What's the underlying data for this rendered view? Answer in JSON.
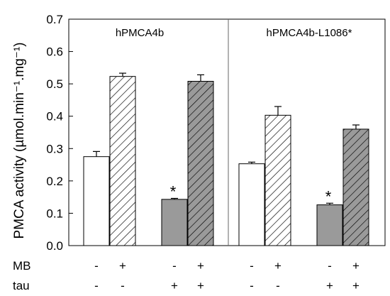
{
  "chart_data": {
    "type": "bar",
    "ylabel": "PMCA activity (µmol.min⁻¹.mg⁻¹)",
    "ylim": [
      0,
      0.7
    ],
    "yticks": [
      "0.0",
      "0.1",
      "0.2",
      "0.3",
      "0.4",
      "0.5",
      "0.6",
      "0.7"
    ],
    "panels": [
      {
        "title": "hPMCA4b",
        "bars": [
          {
            "value": 0.275,
            "error": 0.016,
            "fill": "white",
            "hatch": false,
            "MB": "-",
            "tau": "-",
            "star": false
          },
          {
            "value": 0.523,
            "error": 0.01,
            "fill": "white",
            "hatch": true,
            "MB": "+",
            "tau": "-",
            "star": false
          },
          {
            "value": 0.143,
            "error": 0.003,
            "fill": "gray",
            "hatch": false,
            "MB": "-",
            "tau": "+",
            "star": true
          },
          {
            "value": 0.508,
            "error": 0.02,
            "fill": "gray",
            "hatch": true,
            "MB": "+",
            "tau": "+",
            "star": false
          }
        ]
      },
      {
        "title": "hPMCA4b-L1086*",
        "bars": [
          {
            "value": 0.253,
            "error": 0.005,
            "fill": "white",
            "hatch": false,
            "MB": "-",
            "tau": "-",
            "star": false
          },
          {
            "value": 0.403,
            "error": 0.027,
            "fill": "white",
            "hatch": true,
            "MB": "+",
            "tau": "-",
            "star": false
          },
          {
            "value": 0.126,
            "error": 0.005,
            "fill": "gray",
            "hatch": false,
            "MB": "-",
            "tau": "+",
            "star": true
          },
          {
            "value": 0.36,
            "error": 0.013,
            "fill": "gray",
            "hatch": true,
            "MB": "+",
            "tau": "+",
            "star": false
          }
        ]
      }
    ],
    "row_labels": {
      "MB": "MB",
      "tau": "tau"
    },
    "star_label": "*",
    "colors": {
      "gray": "#9a9a9a",
      "white": "#ffffff",
      "line": "#000000",
      "divider": "#666666"
    }
  }
}
